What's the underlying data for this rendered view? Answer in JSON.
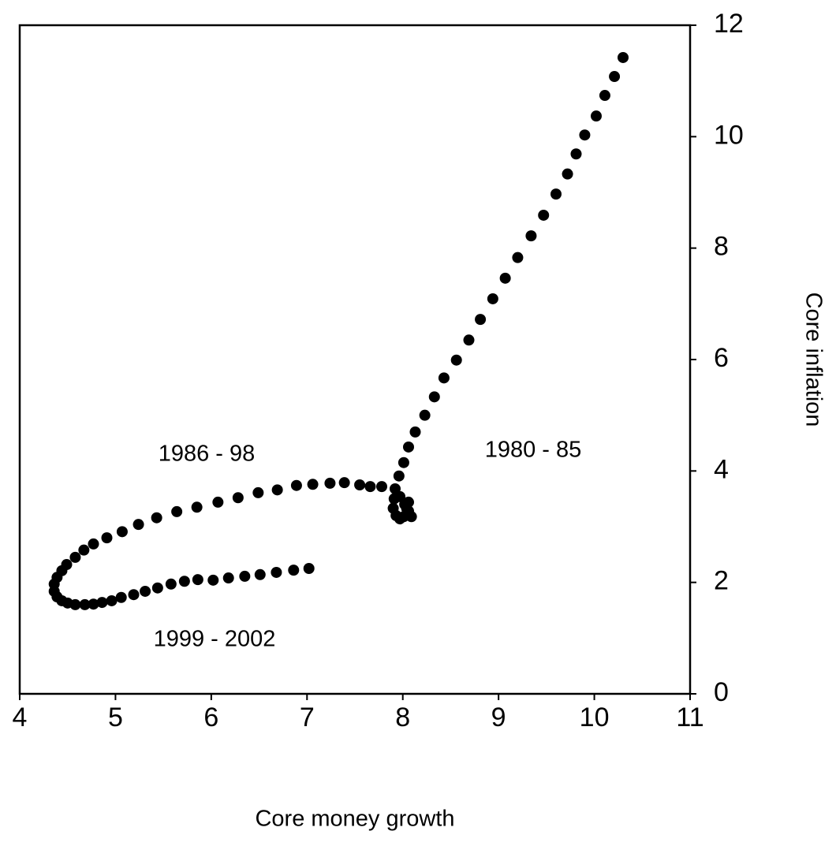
{
  "chart_data": {
    "type": "scatter",
    "xlabel": "Core money growth",
    "ylabel": "Core inflation",
    "annotations": [
      "1986 - 98",
      "1980 - 85",
      "1999 - 2002"
    ],
    "color": "#000000",
    "x": [
      10.3,
      10.21,
      10.11,
      10.02,
      9.9,
      9.81,
      9.72,
      9.6,
      9.47,
      9.34,
      9.2,
      9.07,
      8.94,
      8.81,
      8.69,
      8.56,
      8.43,
      8.33,
      8.23,
      8.13,
      8.06,
      8.01,
      7.96,
      7.92,
      7.97,
      8.02,
      8.06,
      8.09,
      8.06,
      8.04,
      8.01,
      7.97,
      7.93,
      7.9,
      7.91,
      7.78,
      7.66,
      7.55,
      7.39,
      7.24,
      7.06,
      6.89,
      6.69,
      6.49,
      6.28,
      6.07,
      5.85,
      5.64,
      5.43,
      5.24,
      5.07,
      4.91,
      4.77,
      4.67,
      4.58,
      4.49,
      4.44,
      4.39,
      4.36,
      4.36,
      4.39,
      4.44,
      4.5,
      4.58,
      4.68,
      4.77,
      4.86,
      4.96,
      5.06,
      5.19,
      5.31,
      5.44,
      5.58,
      5.72,
      5.86,
      6.02,
      6.18,
      6.35,
      6.51,
      6.68,
      6.86,
      7.02
    ],
    "values": [
      11.42,
      11.08,
      10.74,
      10.37,
      10.03,
      9.69,
      9.33,
      8.97,
      8.59,
      8.22,
      7.83,
      7.46,
      7.09,
      6.72,
      6.35,
      5.99,
      5.67,
      5.33,
      5.0,
      4.7,
      4.43,
      4.15,
      3.91,
      3.68,
      3.54,
      3.4,
      3.28,
      3.18,
      3.44,
      3.33,
      3.18,
      3.14,
      3.2,
      3.33,
      3.5,
      3.72,
      3.72,
      3.75,
      3.79,
      3.78,
      3.76,
      3.74,
      3.66,
      3.61,
      3.52,
      3.44,
      3.35,
      3.27,
      3.16,
      3.04,
      2.91,
      2.8,
      2.69,
      2.58,
      2.45,
      2.32,
      2.21,
      2.09,
      1.97,
      1.84,
      1.74,
      1.67,
      1.63,
      1.6,
      1.6,
      1.61,
      1.64,
      1.67,
      1.73,
      1.78,
      1.84,
      1.9,
      1.97,
      2.02,
      2.05,
      2.04,
      2.08,
      2.11,
      2.14,
      2.18,
      2.22,
      2.25
    ],
    "xlim": [
      4,
      11
    ],
    "ylim": [
      0,
      12
    ],
    "xticks": [
      4,
      5,
      6,
      7,
      8,
      9,
      10,
      11
    ],
    "yticks": [
      0,
      2,
      4,
      6,
      8,
      10,
      12
    ],
    "grid": false
  }
}
